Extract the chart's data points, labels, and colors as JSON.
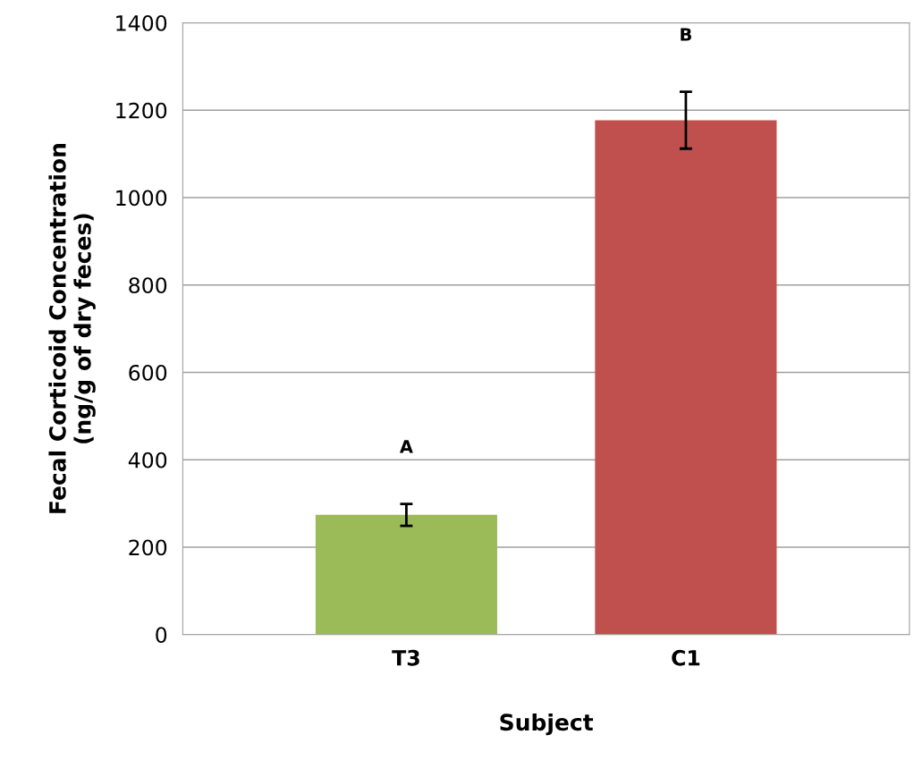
{
  "chart_data": {
    "type": "bar",
    "xlabel": "Subject",
    "ylabel": "Fecal Corticoid Concentration\n(ng/g of dry feces)",
    "categories": [
      "T3",
      "C1"
    ],
    "values": [
      274,
      1177
    ],
    "colors": [
      "#9bbb59",
      "#c0504d"
    ],
    "errors": [
      25,
      65
    ],
    "ylim": [
      0,
      1400
    ],
    "yticks": [
      0,
      200,
      400,
      600,
      800,
      1000,
      1200,
      1400
    ],
    "grid": "y",
    "annotations": [
      "A",
      "B"
    ]
  }
}
